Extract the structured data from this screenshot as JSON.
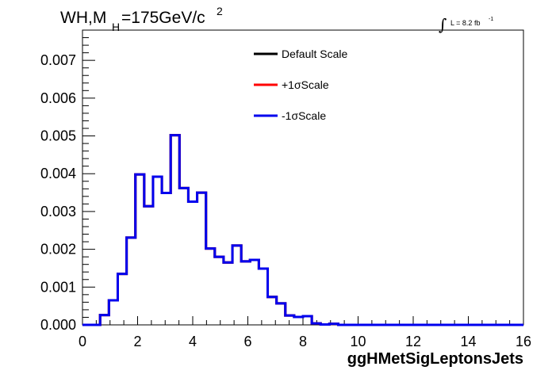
{
  "chart_data": {
    "type": "line",
    "title_main": "WH,M",
    "title_sub": "H",
    "title_value": "=175GeV/c",
    "title_sup": "2",
    "lumi_text": "L = 8.2 fb",
    "lumi_sup": "-1",
    "lumi_integral": "∫",
    "xlabel": "ggHMetSigLeptonsJets",
    "ylabel": "",
    "xlim": [
      0,
      16
    ],
    "ylim": [
      0,
      0.0078
    ],
    "x_ticks": [
      0,
      2,
      4,
      6,
      8,
      10,
      12,
      14,
      16
    ],
    "x_tick_labels": [
      "0",
      "2",
      "4",
      "6",
      "8",
      "10",
      "12",
      "14",
      "16"
    ],
    "y_ticks": [
      0,
      0.001,
      0.002,
      0.003,
      0.004,
      0.005,
      0.006,
      0.007
    ],
    "y_tick_labels": [
      "0.000",
      "0.001",
      "0.002",
      "0.003",
      "0.004",
      "0.005",
      "0.006",
      "0.007"
    ],
    "bin_edges_start": 0,
    "bin_width": 0.32,
    "series": [
      {
        "name": "Default Scale",
        "color": "#000000",
        "values": [
          0,
          0,
          0.00026,
          0.00065,
          0.00135,
          0.00231,
          0.00398,
          0.00314,
          0.00392,
          0.00349,
          0.00502,
          0.00362,
          0.00326,
          0.0035,
          0.00202,
          0.0018,
          0.00165,
          0.0021,
          0.00168,
          0.00172,
          0.00149,
          0.00074,
          0.00057,
          0.00025,
          0.00021,
          0.00023,
          4e-05,
          1e-05,
          3e-05,
          0,
          0,
          0,
          0,
          0,
          0,
          0,
          0,
          0,
          0,
          0,
          0,
          0,
          0,
          0,
          0,
          0,
          0,
          0,
          0,
          0
        ]
      },
      {
        "name": "+1σScale",
        "color": "#ff0000",
        "values": [
          0,
          0,
          0.00026,
          0.00065,
          0.00135,
          0.00231,
          0.00398,
          0.00314,
          0.00392,
          0.00349,
          0.00502,
          0.00362,
          0.00326,
          0.0035,
          0.00202,
          0.0018,
          0.00165,
          0.0021,
          0.00168,
          0.00172,
          0.00149,
          0.00074,
          0.00057,
          0.00025,
          0.00021,
          0.00023,
          4e-05,
          1e-05,
          3e-05,
          0,
          0,
          0,
          0,
          0,
          0,
          0,
          0,
          0,
          0,
          0,
          0,
          0,
          0,
          0,
          0,
          0,
          0,
          0,
          0,
          0
        ]
      },
      {
        "name": "-1σScale",
        "color": "#0000ee",
        "values": [
          0,
          0,
          0.00026,
          0.00065,
          0.00135,
          0.00231,
          0.00398,
          0.00314,
          0.00392,
          0.00349,
          0.00502,
          0.00362,
          0.00326,
          0.0035,
          0.00202,
          0.0018,
          0.00165,
          0.0021,
          0.00168,
          0.00172,
          0.00149,
          0.00074,
          0.00057,
          0.00025,
          0.00021,
          0.00023,
          4e-05,
          1e-05,
          3e-05,
          0,
          0,
          0,
          0,
          0,
          0,
          0,
          0,
          0,
          0,
          0,
          0,
          0,
          0,
          0,
          0,
          0,
          0,
          0,
          0,
          0
        ]
      }
    ],
    "legend": [
      {
        "label": "Default Scale",
        "color": "#000000"
      },
      {
        "label": "+1σScale",
        "color": "#ff0000"
      },
      {
        "label": "-1σScale",
        "color": "#0000ee"
      }
    ],
    "legend_position": "top-right",
    "grid": false
  }
}
